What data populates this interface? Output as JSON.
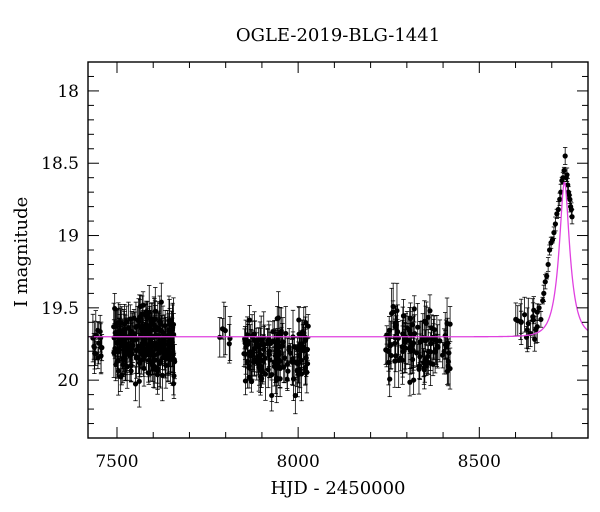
{
  "chart_data": {
    "type": "scatter",
    "title": "OGLE-2019-BLG-1441",
    "xlabel": "HJD - 2450000",
    "ylabel": "I magnitude",
    "xlim": [
      7420,
      8800
    ],
    "ylim": [
      20.4,
      17.8
    ],
    "y_inverted": true,
    "x_major_ticks": [
      7500,
      8000,
      8500
    ],
    "x_tick_labels": [
      "7500",
      "8000",
      "8500"
    ],
    "x_minor_step": 100,
    "y_major_ticks": [
      18,
      18.5,
      19,
      19.5,
      20
    ],
    "y_tick_labels": [
      "18",
      "18.5",
      "19",
      "19.5",
      "20"
    ],
    "y_minor_step": 0.1,
    "grid": false,
    "colors": {
      "points": "#000000",
      "model": "#e040e0",
      "axes": "#000000"
    },
    "model": {
      "name": "",
      "baseline_mag": 19.7,
      "peak_mag": 18.63,
      "peak_hjd": 8735,
      "timescale_days": 30,
      "impact_parameter": 0.36
    },
    "series": [
      {
        "name": "",
        "segments": [
          {
            "x_start": 7430,
            "x_end": 7470,
            "count": 14,
            "y_mean": 19.72,
            "y_spread": 0.14
          },
          {
            "x_start": 7490,
            "x_end": 7660,
            "count": 240,
            "y_mean": 19.75,
            "y_spread": 0.2
          },
          {
            "x_start": 7780,
            "x_end": 7820,
            "count": 6,
            "y_mean": 19.68,
            "y_spread": 0.07
          },
          {
            "x_start": 7850,
            "x_end": 8030,
            "count": 140,
            "y_mean": 19.8,
            "y_spread": 0.18
          },
          {
            "x_start": 8240,
            "x_end": 8420,
            "count": 110,
            "y_mean": 19.75,
            "y_spread": 0.18
          },
          {
            "x_start": 8600,
            "x_end": 8660,
            "count": 16,
            "y_mean": 19.62,
            "y_spread": 0.1
          }
        ],
        "rise_peak_points": [
          {
            "hjd": 8660,
            "mag": 19.53
          },
          {
            "hjd": 8665,
            "mag": 19.5
          },
          {
            "hjd": 8670,
            "mag": 19.58
          },
          {
            "hjd": 8675,
            "mag": 19.45
          },
          {
            "hjd": 8678,
            "mag": 19.4
          },
          {
            "hjd": 8682,
            "mag": 19.32
          },
          {
            "hjd": 8686,
            "mag": 19.28
          },
          {
            "hjd": 8690,
            "mag": 19.2
          },
          {
            "hjd": 8694,
            "mag": 19.1
          },
          {
            "hjd": 8698,
            "mag": 19.05
          },
          {
            "hjd": 8702,
            "mag": 19.03
          },
          {
            "hjd": 8706,
            "mag": 18.98
          },
          {
            "hjd": 8710,
            "mag": 18.92
          },
          {
            "hjd": 8714,
            "mag": 18.85
          },
          {
            "hjd": 8718,
            "mag": 18.82
          },
          {
            "hjd": 8722,
            "mag": 18.75
          },
          {
            "hjd": 8725,
            "mag": 18.7
          },
          {
            "hjd": 8728,
            "mag": 18.62
          },
          {
            "hjd": 8731,
            "mag": 18.6
          },
          {
            "hjd": 8734,
            "mag": 18.55
          },
          {
            "hjd": 8737,
            "mag": 18.45
          },
          {
            "hjd": 8740,
            "mag": 18.6
          },
          {
            "hjd": 8742,
            "mag": 18.58
          },
          {
            "hjd": 8744,
            "mag": 18.65
          },
          {
            "hjd": 8746,
            "mag": 18.7
          },
          {
            "hjd": 8748,
            "mag": 18.72
          },
          {
            "hjd": 8750,
            "mag": 18.75
          },
          {
            "hjd": 8752,
            "mag": 18.8
          },
          {
            "hjd": 8754,
            "mag": 18.82
          },
          {
            "hjd": 8756,
            "mag": 18.87
          }
        ]
      }
    ]
  }
}
